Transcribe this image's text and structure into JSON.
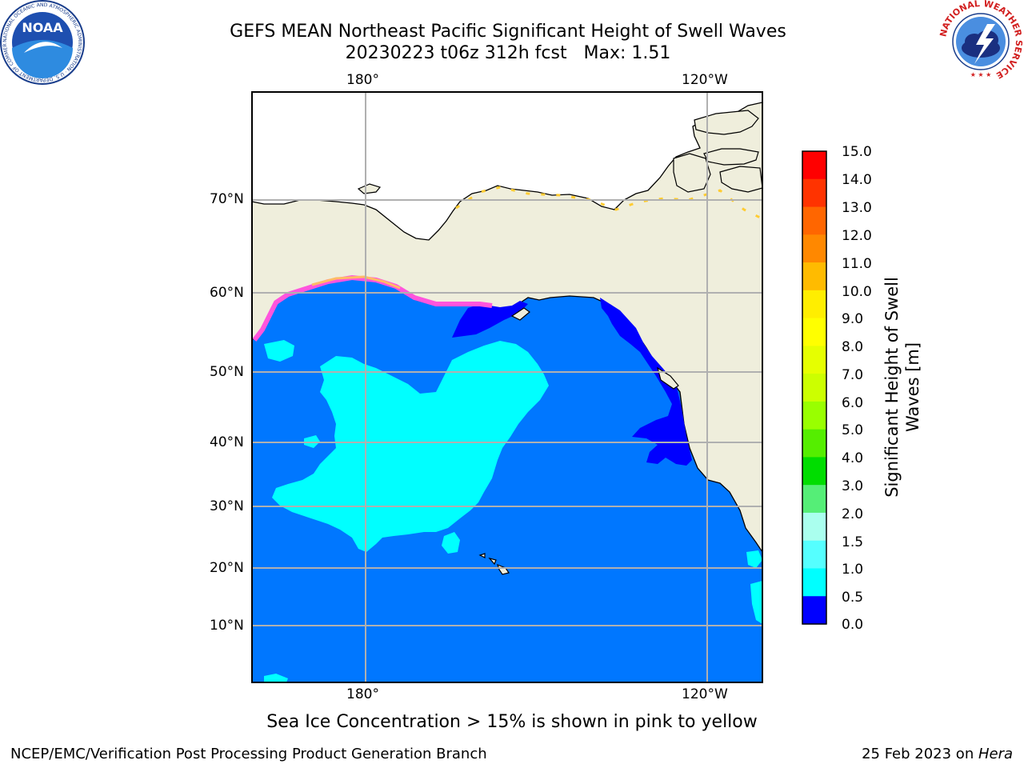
{
  "title_line1": "GEFS MEAN Northeast Pacific Significant Height of Swell Waves",
  "title_line2": "20230223 t06z 312h fcst   Max: 1.51",
  "lon_labels_top": [
    "180°",
    "120°W"
  ],
  "lon_labels_bottom": [
    "180°",
    "120°W"
  ],
  "lat_labels": [
    "70°N",
    "60°N",
    "50°N",
    "40°N",
    "30°N",
    "20°N",
    "10°N"
  ],
  "colorbar": {
    "title_line1": "Significant Height of Swell",
    "title_line2": "Waves [m]",
    "ticks": [
      "15.0",
      "14.0",
      "13.0",
      "12.0",
      "11.0",
      "10.0",
      "9.0",
      "8.0",
      "7.0",
      "6.0",
      "5.0",
      "4.0",
      "3.0",
      "2.0",
      "1.5",
      "1.0",
      "0.5",
      "0.0"
    ],
    "colors": [
      "#ff0000",
      "#ff3300",
      "#ff6600",
      "#ff8800",
      "#ffbb00",
      "#ffee00",
      "#ffff00",
      "#e6ff00",
      "#ccff00",
      "#99ff00",
      "#55ee00",
      "#00dd00",
      "#55ee77",
      "#aaffee",
      "#55ffff",
      "#00ffff",
      "#0077ff",
      "#0000ff"
    ]
  },
  "colors": {
    "land": "#efeedc",
    "ocean_main": "#0077ff",
    "ocean_low": "#0000ff",
    "ocean_high": "#00ffff",
    "grid": "#b0b0b0",
    "coast": "#000000"
  },
  "note": "Sea Ice Concentration > 15% is shown in pink to yellow",
  "footer_left": "NCEP/EMC/Verification Post Processing Product Generation Branch",
  "footer_right_date": "25 Feb 2023 on ",
  "footer_right_host": "Hera",
  "logos": {
    "noaa_text": "NOAA",
    "noaa_ring": "NATIONAL OCEANIC AND ATMOSPHERIC ADMINISTRATION · U.S. DEPARTMENT OF COMMERCE",
    "nws_ring": "NATIONAL WEATHER SERVICE"
  }
}
